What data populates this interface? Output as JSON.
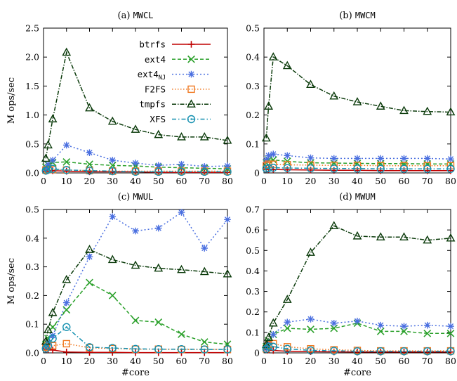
{
  "chart_data": [
    {
      "type": "line",
      "title_prefix": "(a)",
      "title_name": "MWCL",
      "xlabel": "",
      "ylabel": "M ops/sec",
      "xlim": [
        0,
        80
      ],
      "ylim": [
        0,
        2.5
      ],
      "xticks": [
        0,
        10,
        20,
        30,
        40,
        50,
        60,
        70,
        80
      ],
      "yticks": [
        0,
        0.5,
        1.0,
        1.5,
        2.0,
        2.5
      ],
      "ytick_labels": [
        "0.0",
        "0.5",
        "1.0",
        "1.5",
        "2.0",
        "2.5"
      ],
      "legend": true,
      "legend_position": "top-right",
      "series": [
        {
          "name": "btrfs",
          "x": [
            1,
            2,
            4,
            10,
            20,
            30,
            40,
            50,
            60,
            70,
            80
          ],
          "y": [
            0.03,
            0.04,
            0.04,
            0.03,
            0.02,
            0.02,
            0.02,
            0.01,
            0.01,
            0.01,
            0.01
          ]
        },
        {
          "name": "ext4",
          "x": [
            1,
            2,
            4,
            10,
            20,
            30,
            40,
            50,
            60,
            70,
            80
          ],
          "y": [
            0.1,
            0.14,
            0.18,
            0.19,
            0.15,
            0.13,
            0.12,
            0.1,
            0.09,
            0.08,
            0.07
          ]
        },
        {
          "name": "ext4NJ",
          "x": [
            1,
            2,
            4,
            10,
            20,
            30,
            40,
            50,
            60,
            70,
            80
          ],
          "y": [
            0.08,
            0.15,
            0.22,
            0.48,
            0.35,
            0.22,
            0.17,
            0.13,
            0.15,
            0.11,
            0.12
          ]
        },
        {
          "name": "F2FS",
          "x": [
            1,
            2,
            4,
            10,
            20,
            30,
            40,
            50,
            60,
            70,
            80
          ],
          "y": [
            0.05,
            0.06,
            0.06,
            0.05,
            0.04,
            0.03,
            0.03,
            0.03,
            0.03,
            0.03,
            0.03
          ]
        },
        {
          "name": "tmpfs",
          "x": [
            1,
            2,
            4,
            10,
            20,
            30,
            40,
            50,
            60,
            70,
            80
          ],
          "y": [
            0.25,
            0.48,
            0.93,
            2.08,
            1.12,
            0.89,
            0.75,
            0.66,
            0.62,
            0.62,
            0.56
          ]
        },
        {
          "name": "XFS",
          "x": [
            1,
            2,
            4,
            10,
            20,
            30,
            40,
            50,
            60,
            70,
            80
          ],
          "y": [
            0.04,
            0.06,
            0.07,
            0.05,
            0.04,
            0.03,
            0.02,
            0.02,
            0.02,
            0.02,
            0.02
          ]
        }
      ]
    },
    {
      "type": "line",
      "title_prefix": "(b)",
      "title_name": "MWCM",
      "xlabel": "",
      "ylabel": "",
      "xlim": [
        0,
        80
      ],
      "ylim": [
        0,
        0.5
      ],
      "xticks": [
        0,
        10,
        20,
        30,
        40,
        50,
        60,
        70,
        80
      ],
      "yticks": [
        0,
        0.1,
        0.2,
        0.3,
        0.4,
        0.5
      ],
      "ytick_labels": [
        "0",
        "0.1",
        "0.2",
        "0.3",
        "0.4",
        "0.5"
      ],
      "legend": false,
      "series": [
        {
          "name": "btrfs",
          "x": [
            1,
            2,
            4,
            10,
            20,
            30,
            40,
            50,
            60,
            70,
            80
          ],
          "y": [
            0.012,
            0.012,
            0.012,
            0.011,
            0.01,
            0.009,
            0.009,
            0.008,
            0.008,
            0.008,
            0.008
          ]
        },
        {
          "name": "ext4",
          "x": [
            1,
            2,
            4,
            10,
            20,
            30,
            40,
            50,
            60,
            70,
            80
          ],
          "y": [
            0.035,
            0.045,
            0.045,
            0.04,
            0.035,
            0.034,
            0.033,
            0.032,
            0.032,
            0.031,
            0.031
          ]
        },
        {
          "name": "ext4NJ",
          "x": [
            1,
            2,
            4,
            10,
            20,
            30,
            40,
            50,
            60,
            70,
            80
          ],
          "y": [
            0.045,
            0.06,
            0.065,
            0.06,
            0.052,
            0.05,
            0.05,
            0.05,
            0.05,
            0.05,
            0.048
          ]
        },
        {
          "name": "F2FS",
          "x": [
            1,
            2,
            4,
            10,
            20,
            30,
            40,
            50,
            60,
            70,
            80
          ],
          "y": [
            0.025,
            0.03,
            0.03,
            0.028,
            0.027,
            0.026,
            0.026,
            0.025,
            0.025,
            0.025,
            0.025
          ]
        },
        {
          "name": "tmpfs",
          "x": [
            1,
            2,
            4,
            10,
            20,
            30,
            40,
            50,
            60,
            70,
            80
          ],
          "y": [
            0.12,
            0.23,
            0.4,
            0.37,
            0.305,
            0.265,
            0.245,
            0.23,
            0.215,
            0.212,
            0.21
          ]
        },
        {
          "name": "XFS",
          "x": [
            1,
            2,
            4,
            10,
            20,
            30,
            40,
            50,
            60,
            70,
            80
          ],
          "y": [
            0.015,
            0.017,
            0.018,
            0.017,
            0.016,
            0.015,
            0.015,
            0.014,
            0.014,
            0.014,
            0.014
          ]
        }
      ]
    },
    {
      "type": "line",
      "title_prefix": "(c)",
      "title_name": "MWUL",
      "xlabel": "#core",
      "ylabel": "M ops/sec",
      "xlim": [
        0,
        80
      ],
      "ylim": [
        0,
        0.5
      ],
      "xticks": [
        0,
        10,
        20,
        30,
        40,
        50,
        60,
        70,
        80
      ],
      "yticks": [
        0,
        0.1,
        0.2,
        0.3,
        0.4,
        0.5
      ],
      "ytick_labels": [
        "0.0",
        "0.1",
        "0.2",
        "0.3",
        "0.4",
        "0.5"
      ],
      "legend": false,
      "series": [
        {
          "name": "btrfs",
          "x": [
            1,
            2,
            4,
            10,
            20,
            30,
            40,
            50,
            60,
            70,
            80
          ],
          "y": [
            0.012,
            0.012,
            0.01,
            0.003,
            0.002,
            0.002,
            0.001,
            0.001,
            0.001,
            0.001,
            0.001
          ]
        },
        {
          "name": "ext4",
          "x": [
            1,
            2,
            4,
            10,
            20,
            30,
            40,
            50,
            60,
            70,
            80
          ],
          "y": [
            0.03,
            0.05,
            0.09,
            0.15,
            0.245,
            0.2,
            0.113,
            0.107,
            0.065,
            0.038,
            0.03
          ]
        },
        {
          "name": "ext4NJ",
          "x": [
            1,
            2,
            4,
            10,
            20,
            30,
            40,
            50,
            60,
            70,
            80
          ],
          "y": [
            0.02,
            0.035,
            0.06,
            0.175,
            0.335,
            0.475,
            0.425,
            0.435,
            0.49,
            0.365,
            0.465
          ]
        },
        {
          "name": "F2FS",
          "x": [
            1,
            2,
            4,
            10,
            20,
            30,
            40,
            50,
            60,
            70,
            80
          ],
          "y": [
            0.02,
            0.025,
            0.025,
            0.032,
            0.018,
            0.015,
            0.013,
            0.013,
            0.012,
            0.012,
            0.012
          ]
        },
        {
          "name": "tmpfs",
          "x": [
            1,
            2,
            4,
            10,
            20,
            30,
            40,
            50,
            60,
            70,
            80
          ],
          "y": [
            0.04,
            0.08,
            0.14,
            0.255,
            0.36,
            0.325,
            0.305,
            0.295,
            0.29,
            0.283,
            0.275
          ]
        },
        {
          "name": "XFS",
          "x": [
            1,
            2,
            4,
            10,
            20,
            30,
            40,
            50,
            60,
            70,
            80
          ],
          "y": [
            0.015,
            0.025,
            0.05,
            0.09,
            0.02,
            0.017,
            0.014,
            0.013,
            0.013,
            0.012,
            0.012
          ]
        }
      ]
    },
    {
      "type": "line",
      "title_prefix": "(d)",
      "title_name": "MWUM",
      "xlabel": "#core",
      "ylabel": "",
      "xlim": [
        0,
        80
      ],
      "ylim": [
        0,
        0.7
      ],
      "xticks": [
        0,
        10,
        20,
        30,
        40,
        50,
        60,
        70,
        80
      ],
      "yticks": [
        0,
        0.1,
        0.2,
        0.3,
        0.4,
        0.5,
        0.6,
        0.7
      ],
      "ytick_labels": [
        "0",
        "0.1",
        "0.2",
        "0.3",
        "0.4",
        "0.5",
        "0.6",
        "0.7"
      ],
      "legend": false,
      "series": [
        {
          "name": "btrfs",
          "x": [
            1,
            2,
            4,
            10,
            20,
            30,
            40,
            50,
            60,
            70,
            80
          ],
          "y": [
            0.015,
            0.015,
            0.012,
            0.008,
            0.006,
            0.005,
            0.004,
            0.004,
            0.004,
            0.004,
            0.004
          ]
        },
        {
          "name": "ext4",
          "x": [
            1,
            2,
            4,
            10,
            20,
            30,
            40,
            50,
            60,
            70,
            80
          ],
          "y": [
            0.03,
            0.06,
            0.09,
            0.12,
            0.115,
            0.12,
            0.145,
            0.105,
            0.105,
            0.095,
            0.095
          ]
        },
        {
          "name": "ext4NJ",
          "x": [
            1,
            2,
            4,
            10,
            20,
            30,
            40,
            50,
            60,
            70,
            80
          ],
          "y": [
            0.025,
            0.05,
            0.09,
            0.15,
            0.165,
            0.145,
            0.155,
            0.135,
            0.13,
            0.135,
            0.13
          ]
        },
        {
          "name": "F2FS",
          "x": [
            1,
            2,
            4,
            10,
            20,
            30,
            40,
            50,
            60,
            70,
            80
          ],
          "y": [
            0.02,
            0.04,
            0.045,
            0.03,
            0.02,
            0.015,
            0.012,
            0.01,
            0.01,
            0.01,
            0.01
          ]
        },
        {
          "name": "tmpfs",
          "x": [
            1,
            2,
            4,
            10,
            20,
            30,
            40,
            50,
            60,
            70,
            80
          ],
          "y": [
            0.04,
            0.075,
            0.145,
            0.26,
            0.49,
            0.62,
            0.57,
            0.565,
            0.565,
            0.55,
            0.56
          ]
        },
        {
          "name": "XFS",
          "x": [
            1,
            2,
            4,
            10,
            20,
            30,
            40,
            50,
            60,
            70,
            80
          ],
          "y": [
            0.02,
            0.03,
            0.03,
            0.02,
            0.012,
            0.01,
            0.008,
            0.008,
            0.008,
            0.008,
            0.008
          ]
        }
      ]
    }
  ],
  "legend": {
    "items": [
      {
        "label": "btrfs",
        "sub": "",
        "color": "#c00000",
        "marker": "plus",
        "dash": ""
      },
      {
        "label": "ext4",
        "sub": "",
        "color": "#2aa02a",
        "marker": "cross",
        "dash": "5,3"
      },
      {
        "label": "ext4",
        "sub": "NJ",
        "color": "#4a6fe0",
        "marker": "star",
        "dash": "2,3"
      },
      {
        "label": "F2FS",
        "sub": "",
        "color": "#f07820",
        "marker": "square",
        "dash": "1.5,2.5"
      },
      {
        "label": "tmpfs",
        "sub": "",
        "color": "#0a3a0a",
        "marker": "triangle",
        "dash": "6,2,1.5,2"
      },
      {
        "label": "XFS",
        "sub": "",
        "color": "#1490b0",
        "marker": "circle",
        "dash": "6,3,1.5,3"
      }
    ]
  }
}
